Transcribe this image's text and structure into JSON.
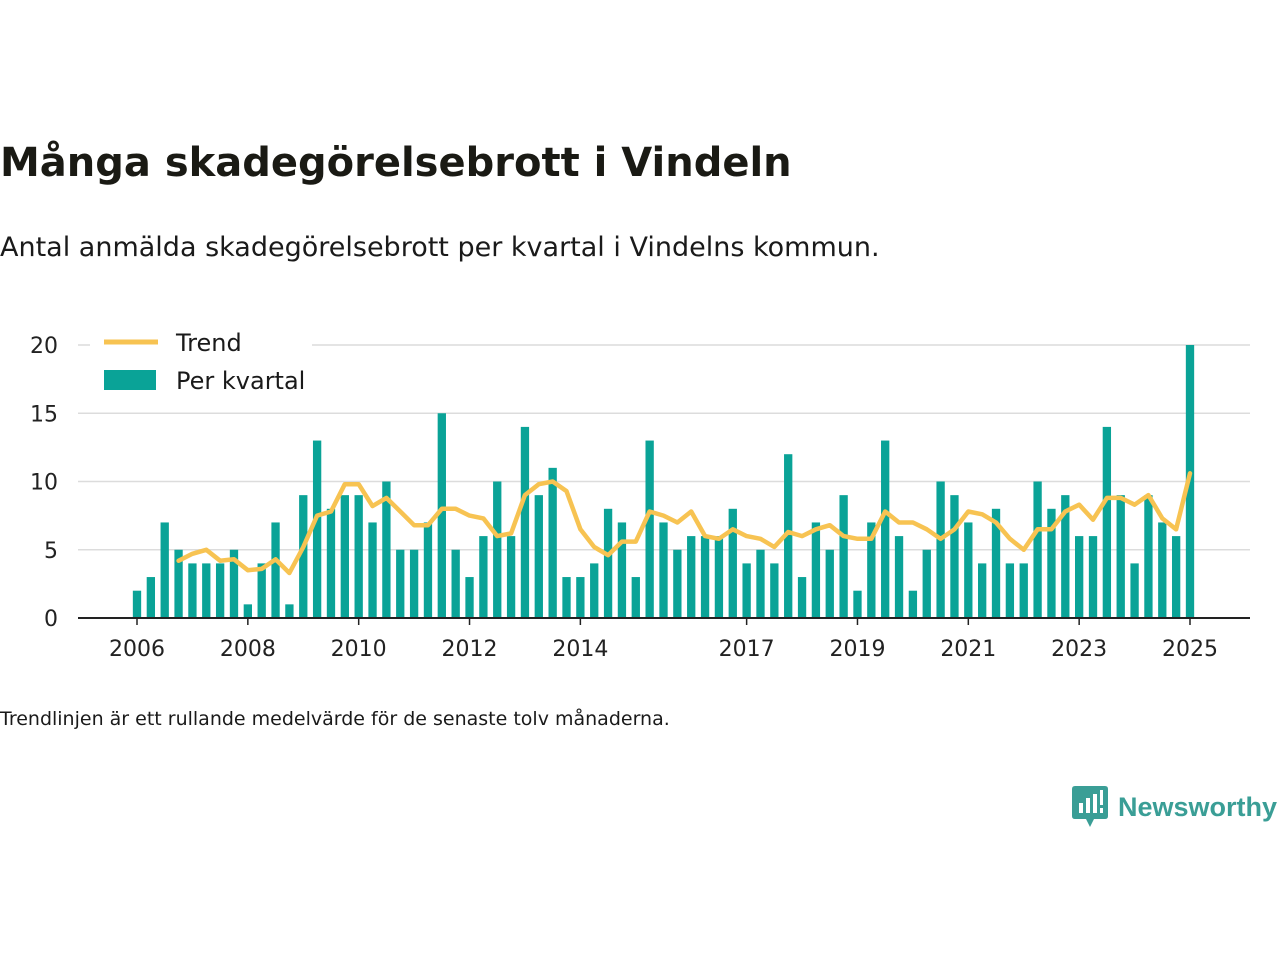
{
  "title": "Många skadegörelsebrott i Vindeln",
  "subtitle": "Antal anmälda skadegörelsebrott per kvartal i Vindelns kommun.",
  "note": "Trendlinjen är ett rullande medelvärde för de senaste tolv månaderna.",
  "brand": {
    "name": "Newsworthy",
    "icon": "newsworthy-chart-bubble-icon"
  },
  "colors": {
    "bar": "#0aa397",
    "trend": "#f7c352",
    "grid": "#dcdcdc",
    "axis": "#222222"
  },
  "chart_data": {
    "type": "bar",
    "legend": {
      "position": "top-left",
      "items": [
        "Trend",
        "Per kvartal"
      ]
    },
    "ylim": [
      0,
      20
    ],
    "yticks": [
      0,
      5,
      10,
      15,
      20
    ],
    "xlim": [
      2005.75,
      2026.75
    ],
    "xticks": [
      "2006",
      "2008",
      "2010",
      "2012",
      "2014",
      "2017",
      "2019",
      "2021",
      "2023",
      "2025"
    ],
    "grid": true,
    "series": [
      {
        "name": "Per kvartal",
        "type": "bar",
        "x": [
          2006.0,
          2006.25,
          2006.5,
          2006.75,
          2007.0,
          2007.25,
          2007.5,
          2007.75,
          2008.0,
          2008.25,
          2008.5,
          2008.75,
          2009.0,
          2009.25,
          2009.5,
          2009.75,
          2010.0,
          2010.25,
          2010.5,
          2010.75,
          2011.0,
          2011.25,
          2011.5,
          2011.75,
          2012.0,
          2012.25,
          2012.5,
          2012.75,
          2013.0,
          2013.25,
          2013.5,
          2013.75,
          2014.0,
          2014.25,
          2014.5,
          2014.75,
          2015.0,
          2015.25,
          2015.5,
          2015.75,
          2016.0,
          2016.25,
          2016.5,
          2016.75,
          2017.0,
          2017.25,
          2017.5,
          2017.75,
          2018.0,
          2018.25,
          2018.5,
          2018.75,
          2019.0,
          2019.25,
          2019.5,
          2019.75,
          2020.0,
          2020.25,
          2020.5,
          2020.75,
          2021.0,
          2021.25,
          2021.5,
          2021.75,
          2022.0,
          2022.25,
          2022.5,
          2022.75,
          2023.0,
          2023.25,
          2023.5,
          2023.75,
          2024.0,
          2024.25,
          2024.5,
          2024.75,
          2025.0
        ],
        "values": [
          2,
          3,
          7,
          5,
          4,
          4,
          4,
          5,
          1,
          4,
          7,
          1,
          9,
          13,
          8,
          9,
          9,
          7,
          10,
          5,
          5,
          7,
          15,
          5,
          3,
          6,
          10,
          6,
          14,
          9,
          11,
          3,
          3,
          4,
          8,
          7,
          3,
          13,
          7,
          5,
          6,
          6,
          6,
          8,
          4,
          5,
          4,
          12,
          3,
          7,
          5,
          9,
          2,
          7,
          13,
          6,
          2,
          5,
          10,
          9,
          7,
          4,
          8,
          4,
          4,
          10,
          8,
          9,
          6,
          6,
          14,
          9,
          4,
          9,
          7,
          6,
          20
        ]
      },
      {
        "name": "Trend",
        "type": "line",
        "x": [
          2006.75,
          2007.0,
          2007.25,
          2007.5,
          2007.75,
          2008.0,
          2008.25,
          2008.5,
          2008.75,
          2009.0,
          2009.25,
          2009.5,
          2009.75,
          2010.0,
          2010.25,
          2010.5,
          2010.75,
          2011.0,
          2011.25,
          2011.5,
          2011.75,
          2012.0,
          2012.25,
          2012.5,
          2012.75,
          2013.0,
          2013.25,
          2013.5,
          2013.75,
          2014.0,
          2014.25,
          2014.5,
          2014.75,
          2015.0,
          2015.25,
          2015.5,
          2015.75,
          2016.0,
          2016.25,
          2016.5,
          2016.75,
          2017.0,
          2017.25,
          2017.5,
          2017.75,
          2018.0,
          2018.25,
          2018.5,
          2018.75,
          2019.0,
          2019.25,
          2019.5,
          2019.75,
          2020.0,
          2020.25,
          2020.5,
          2020.75,
          2021.0,
          2021.25,
          2021.5,
          2021.75,
          2022.0,
          2022.25,
          2022.5,
          2022.75,
          2023.0,
          2023.25,
          2023.5,
          2023.75,
          2024.0,
          2024.25,
          2024.5,
          2024.75,
          2025.0
        ],
        "values": [
          4.2,
          4.7,
          5.0,
          4.2,
          4.3,
          3.5,
          3.6,
          4.3,
          3.3,
          5.2,
          7.5,
          7.8,
          9.8,
          9.8,
          8.2,
          8.8,
          7.8,
          6.8,
          6.8,
          8.0,
          8.0,
          7.5,
          7.3,
          6.0,
          6.2,
          9.0,
          9.8,
          10.0,
          9.3,
          6.5,
          5.2,
          4.6,
          5.6,
          5.6,
          7.8,
          7.5,
          7.0,
          7.8,
          6.0,
          5.8,
          6.5,
          6.0,
          5.8,
          5.2,
          6.3,
          6.0,
          6.5,
          6.8,
          6.0,
          5.8,
          5.8,
          7.8,
          7.0,
          7.0,
          6.5,
          5.8,
          6.5,
          7.8,
          7.6,
          7.0,
          5.8,
          5.0,
          6.5,
          6.5,
          7.8,
          8.3,
          7.2,
          8.8,
          8.8,
          8.3,
          9.0,
          7.3,
          6.5,
          10.6
        ]
      }
    ]
  }
}
